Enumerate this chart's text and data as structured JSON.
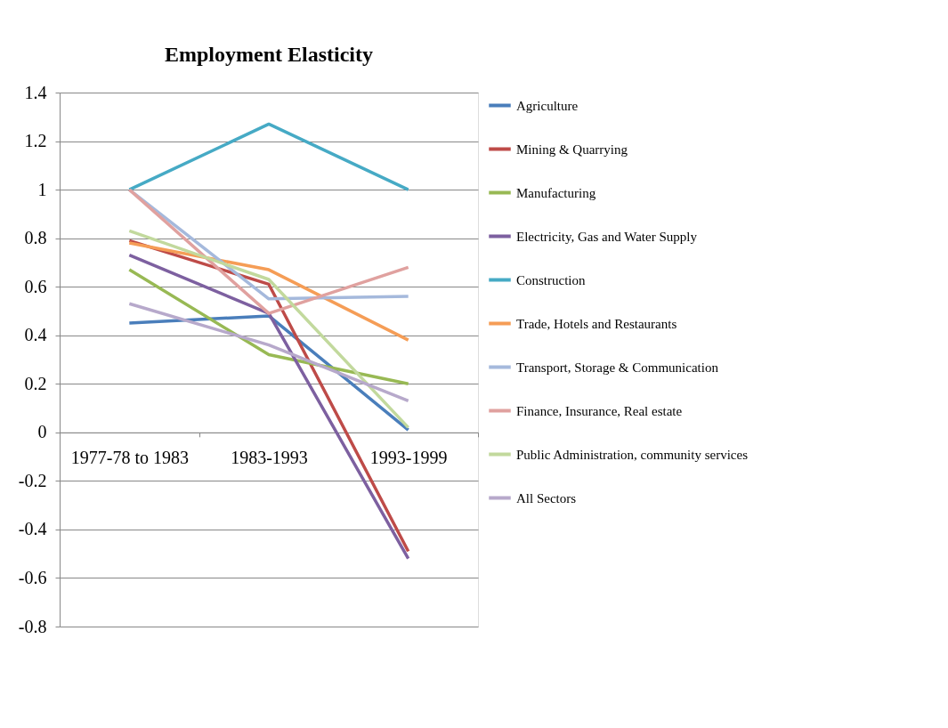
{
  "chart_data": {
    "type": "line",
    "title": "Employment Elasticity",
    "categories": [
      "1977-78 to 1983",
      "1983-1993",
      "1993-1999"
    ],
    "series": [
      {
        "name": "Agriculture",
        "color": "#4a7ebb",
        "values": [
          0.45,
          0.48,
          0.01
        ]
      },
      {
        "name": "Mining & Quarrying",
        "color": "#be4b48",
        "values": [
          0.79,
          0.61,
          -0.49
        ]
      },
      {
        "name": "Manufacturing",
        "color": "#98b954",
        "values": [
          0.67,
          0.32,
          0.2
        ]
      },
      {
        "name": "Electricity, Gas and Water Supply",
        "color": "#7d60a0",
        "values": [
          0.73,
          0.49,
          -0.52
        ]
      },
      {
        "name": "Construction",
        "color": "#46aac5",
        "values": [
          1.0,
          1.27,
          1.0
        ]
      },
      {
        "name": "Trade, Hotels and Restaurants",
        "color": "#f59d56",
        "values": [
          0.78,
          0.67,
          0.38
        ]
      },
      {
        "name": "Transport, Storage & Communication",
        "color": "#a5b9dc",
        "values": [
          1.0,
          0.55,
          0.56
        ]
      },
      {
        "name": "Finance, Insurance, Real estate",
        "color": "#e0a19f",
        "values": [
          1.0,
          0.49,
          0.68
        ]
      },
      {
        "name": "Public Administration, community services",
        "color": "#c2d99d",
        "values": [
          0.83,
          0.63,
          0.02
        ]
      },
      {
        "name": "All Sectors",
        "color": "#b7a9cb",
        "values": [
          0.53,
          0.36,
          0.13
        ]
      }
    ],
    "ylim": [
      -0.8,
      1.4
    ],
    "yticks": [
      -0.8,
      -0.6,
      -0.4,
      -0.2,
      0,
      0.2,
      0.4,
      0.6,
      0.8,
      1,
      1.2,
      1.4
    ],
    "grid": "y",
    "legend": "right",
    "marker": "none",
    "line_style": "solid"
  }
}
